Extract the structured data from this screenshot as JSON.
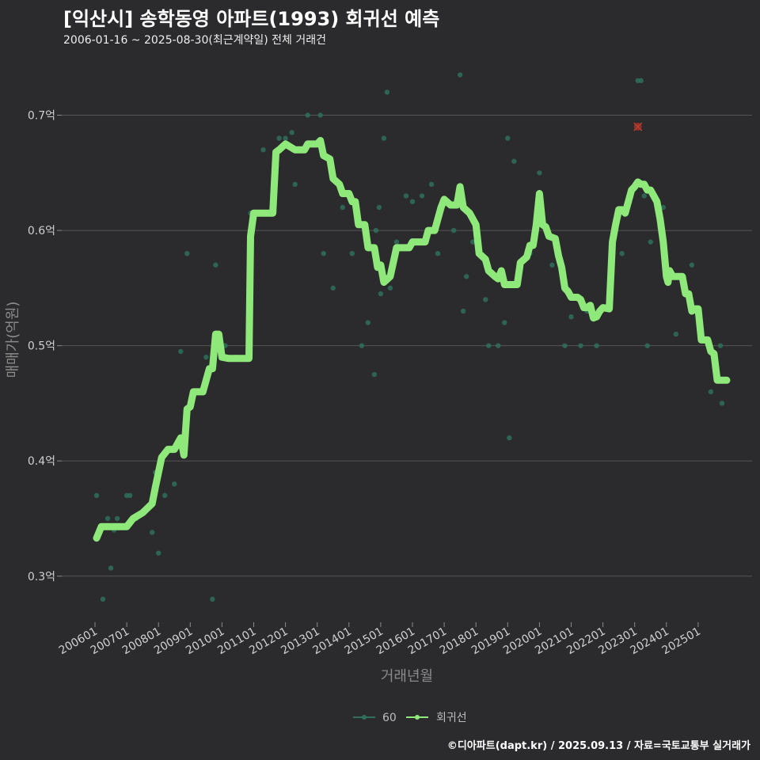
{
  "header": {
    "title": "[익산시] 송학동영 아파트(1993) 회귀선 예측",
    "subtitle": "2006-01-16 ~ 2025-08-30(최근계약일) 전체 거래건"
  },
  "footer": {
    "credit": "©디아파트(dapt.kr) / 2025.09.13 / 자료=국토교통부 실거래가"
  },
  "colors": {
    "background": "#2b2b2d",
    "points": "#2f6f5c",
    "regression": "#8ee87a",
    "outlier": "#c0392b",
    "grid": "#555555"
  },
  "chart_data": {
    "type": "scatter",
    "title": "[익산시] 송학동영 아파트(1993) 회귀선 예측",
    "xlabel": "거래년월",
    "ylabel": "매매가(억원)",
    "xlim": [
      2006.0,
      2026.0
    ],
    "ylim": [
      0.26,
      0.745
    ],
    "y_ticks": [
      {
        "value": 0.3,
        "label": "0.3억"
      },
      {
        "value": 0.4,
        "label": "0.4억"
      },
      {
        "value": 0.5,
        "label": "0.5억"
      },
      {
        "value": 0.6,
        "label": "0.6억"
      },
      {
        "value": 0.7,
        "label": "0.7억"
      }
    ],
    "x_ticks": [
      {
        "value": 2006.0,
        "label": "200601"
      },
      {
        "value": 2007.0,
        "label": "200701"
      },
      {
        "value": 2008.0,
        "label": "200801"
      },
      {
        "value": 2009.0,
        "label": "200901"
      },
      {
        "value": 2010.0,
        "label": "201001"
      },
      {
        "value": 2011.0,
        "label": "201101"
      },
      {
        "value": 2012.0,
        "label": "201201"
      },
      {
        "value": 2013.0,
        "label": "201301"
      },
      {
        "value": 2014.0,
        "label": "201401"
      },
      {
        "value": 2015.0,
        "label": "201501"
      },
      {
        "value": 2016.0,
        "label": "201601"
      },
      {
        "value": 2017.0,
        "label": "201701"
      },
      {
        "value": 2018.0,
        "label": "201801"
      },
      {
        "value": 2019.0,
        "label": "201901"
      },
      {
        "value": 2020.0,
        "label": "202001"
      },
      {
        "value": 2021.0,
        "label": "202101"
      },
      {
        "value": 2022.0,
        "label": "202201"
      },
      {
        "value": 2023.0,
        "label": "202301"
      },
      {
        "value": 2024.0,
        "label": "202401"
      },
      {
        "value": 2025.0,
        "label": "202501"
      }
    ],
    "legend": [
      {
        "name": "60",
        "kind": "points"
      },
      {
        "name": "회귀선",
        "kind": "line"
      }
    ],
    "series": [
      {
        "name": "60",
        "points": [
          [
            2006.05,
            0.37
          ],
          [
            2006.25,
            0.28
          ],
          [
            2006.4,
            0.35
          ],
          [
            2006.5,
            0.307
          ],
          [
            2006.6,
            0.34
          ],
          [
            2006.7,
            0.35
          ],
          [
            2007.0,
            0.37
          ],
          [
            2007.1,
            0.37
          ],
          [
            2007.3,
            0.35
          ],
          [
            2007.5,
            0.355
          ],
          [
            2007.8,
            0.338
          ],
          [
            2007.9,
            0.39
          ],
          [
            2008.0,
            0.32
          ],
          [
            2008.2,
            0.37
          ],
          [
            2008.5,
            0.38
          ],
          [
            2008.7,
            0.495
          ],
          [
            2008.9,
            0.58
          ],
          [
            2009.0,
            0.45
          ],
          [
            2009.1,
            0.46
          ],
          [
            2009.3,
            0.46
          ],
          [
            2009.5,
            0.49
          ],
          [
            2009.7,
            0.28
          ],
          [
            2009.8,
            0.57
          ],
          [
            2010.1,
            0.5
          ],
          [
            2010.4,
            0.49
          ],
          [
            2010.9,
            0.615
          ],
          [
            2011.3,
            0.67
          ],
          [
            2011.7,
            0.66
          ],
          [
            2011.8,
            0.68
          ],
          [
            2012.0,
            0.68
          ],
          [
            2012.2,
            0.685
          ],
          [
            2012.3,
            0.64
          ],
          [
            2012.7,
            0.7
          ],
          [
            2013.1,
            0.7
          ],
          [
            2013.2,
            0.58
          ],
          [
            2013.5,
            0.55
          ],
          [
            2013.8,
            0.62
          ],
          [
            2014.1,
            0.58
          ],
          [
            2014.4,
            0.5
          ],
          [
            2014.6,
            0.52
          ],
          [
            2014.8,
            0.475
          ],
          [
            2014.85,
            0.6
          ],
          [
            2014.95,
            0.62
          ],
          [
            2015.0,
            0.545
          ],
          [
            2015.1,
            0.68
          ],
          [
            2015.2,
            0.72
          ],
          [
            2015.3,
            0.55
          ],
          [
            2015.5,
            0.59
          ],
          [
            2015.8,
            0.63
          ],
          [
            2016.0,
            0.625
          ],
          [
            2016.3,
            0.63
          ],
          [
            2016.5,
            0.6
          ],
          [
            2016.6,
            0.64
          ],
          [
            2016.8,
            0.58
          ],
          [
            2017.3,
            0.6
          ],
          [
            2017.5,
            0.735
          ],
          [
            2017.6,
            0.53
          ],
          [
            2017.7,
            0.56
          ],
          [
            2017.9,
            0.59
          ],
          [
            2018.3,
            0.54
          ],
          [
            2018.4,
            0.5
          ],
          [
            2018.7,
            0.5
          ],
          [
            2018.9,
            0.52
          ],
          [
            2019.0,
            0.68
          ],
          [
            2019.05,
            0.42
          ],
          [
            2019.2,
            0.66
          ],
          [
            2019.4,
            0.57
          ],
          [
            2019.7,
            0.58
          ],
          [
            2019.9,
            0.6
          ],
          [
            2020.0,
            0.65
          ],
          [
            2020.2,
            0.6
          ],
          [
            2020.4,
            0.57
          ],
          [
            2020.5,
            0.59
          ],
          [
            2020.8,
            0.5
          ],
          [
            2021.0,
            0.525
          ],
          [
            2021.3,
            0.5
          ],
          [
            2021.5,
            0.53
          ],
          [
            2021.8,
            0.5
          ],
          [
            2022.6,
            0.58
          ],
          [
            2023.1,
            0.73
          ],
          [
            2023.2,
            0.73
          ],
          [
            2023.3,
            0.63
          ],
          [
            2023.4,
            0.5
          ],
          [
            2023.5,
            0.59
          ],
          [
            2023.9,
            0.62
          ],
          [
            2024.3,
            0.51
          ],
          [
            2024.8,
            0.57
          ],
          [
            2025.4,
            0.46
          ],
          [
            2025.7,
            0.5
          ],
          [
            2025.75,
            0.45
          ]
        ]
      },
      {
        "name": "회귀선",
        "points": [
          [
            2006.05,
            0.333
          ],
          [
            2006.2,
            0.343
          ],
          [
            2006.5,
            0.343
          ],
          [
            2006.8,
            0.343
          ],
          [
            2007.0,
            0.343
          ],
          [
            2007.2,
            0.35
          ],
          [
            2007.5,
            0.355
          ],
          [
            2007.8,
            0.363
          ],
          [
            2007.9,
            0.377
          ],
          [
            2008.0,
            0.39
          ],
          [
            2008.1,
            0.403
          ],
          [
            2008.3,
            0.41
          ],
          [
            2008.5,
            0.41
          ],
          [
            2008.7,
            0.42
          ],
          [
            2008.8,
            0.405
          ],
          [
            2008.9,
            0.445
          ],
          [
            2009.0,
            0.447
          ],
          [
            2009.1,
            0.46
          ],
          [
            2009.4,
            0.46
          ],
          [
            2009.6,
            0.48
          ],
          [
            2009.7,
            0.48
          ],
          [
            2009.75,
            0.495
          ],
          [
            2009.8,
            0.51
          ],
          [
            2009.9,
            0.51
          ],
          [
            2010.0,
            0.49
          ],
          [
            2010.2,
            0.489
          ],
          [
            2010.5,
            0.489
          ],
          [
            2010.85,
            0.489
          ],
          [
            2010.9,
            0.595
          ],
          [
            2011.0,
            0.615
          ],
          [
            2011.3,
            0.615
          ],
          [
            2011.6,
            0.615
          ],
          [
            2011.7,
            0.668
          ],
          [
            2011.8,
            0.67
          ],
          [
            2012.0,
            0.675
          ],
          [
            2012.3,
            0.67
          ],
          [
            2012.6,
            0.67
          ],
          [
            2012.7,
            0.675
          ],
          [
            2012.9,
            0.675
          ],
          [
            2013.0,
            0.675
          ],
          [
            2013.1,
            0.678
          ],
          [
            2013.2,
            0.665
          ],
          [
            2013.4,
            0.662
          ],
          [
            2013.5,
            0.645
          ],
          [
            2013.7,
            0.64
          ],
          [
            2013.8,
            0.632
          ],
          [
            2014.0,
            0.632
          ],
          [
            2014.1,
            0.625
          ],
          [
            2014.2,
            0.625
          ],
          [
            2014.3,
            0.605
          ],
          [
            2014.5,
            0.605
          ],
          [
            2014.6,
            0.585
          ],
          [
            2014.8,
            0.585
          ],
          [
            2014.9,
            0.568
          ],
          [
            2015.0,
            0.57
          ],
          [
            2015.1,
            0.555
          ],
          [
            2015.3,
            0.56
          ],
          [
            2015.5,
            0.585
          ],
          [
            2015.8,
            0.585
          ],
          [
            2015.9,
            0.585
          ],
          [
            2016.0,
            0.59
          ],
          [
            2016.2,
            0.59
          ],
          [
            2016.4,
            0.59
          ],
          [
            2016.5,
            0.6
          ],
          [
            2016.7,
            0.6
          ],
          [
            2016.8,
            0.61
          ],
          [
            2016.9,
            0.62
          ],
          [
            2017.0,
            0.627
          ],
          [
            2017.2,
            0.622
          ],
          [
            2017.4,
            0.622
          ],
          [
            2017.5,
            0.638
          ],
          [
            2017.6,
            0.62
          ],
          [
            2017.8,
            0.615
          ],
          [
            2017.9,
            0.61
          ],
          [
            2018.0,
            0.605
          ],
          [
            2018.1,
            0.58
          ],
          [
            2018.3,
            0.575
          ],
          [
            2018.4,
            0.565
          ],
          [
            2018.6,
            0.56
          ],
          [
            2018.7,
            0.558
          ],
          [
            2018.8,
            0.565
          ],
          [
            2018.9,
            0.553
          ],
          [
            2019.0,
            0.553
          ],
          [
            2019.3,
            0.553
          ],
          [
            2019.4,
            0.572
          ],
          [
            2019.6,
            0.577
          ],
          [
            2019.7,
            0.587
          ],
          [
            2019.8,
            0.587
          ],
          [
            2019.9,
            0.605
          ],
          [
            2020.0,
            0.632
          ],
          [
            2020.1,
            0.605
          ],
          [
            2020.2,
            0.603
          ],
          [
            2020.3,
            0.595
          ],
          [
            2020.5,
            0.593
          ],
          [
            2020.6,
            0.578
          ],
          [
            2020.7,
            0.568
          ],
          [
            2020.8,
            0.55
          ],
          [
            2020.9,
            0.547
          ],
          [
            2021.0,
            0.542
          ],
          [
            2021.2,
            0.542
          ],
          [
            2021.3,
            0.54
          ],
          [
            2021.4,
            0.533
          ],
          [
            2021.5,
            0.533
          ],
          [
            2021.6,
            0.535
          ],
          [
            2021.7,
            0.524
          ],
          [
            2021.8,
            0.525
          ],
          [
            2021.9,
            0.53
          ],
          [
            2022.0,
            0.533
          ],
          [
            2022.2,
            0.532
          ],
          [
            2022.3,
            0.59
          ],
          [
            2022.4,
            0.605
          ],
          [
            2022.5,
            0.618
          ],
          [
            2022.6,
            0.618
          ],
          [
            2022.7,
            0.615
          ],
          [
            2022.8,
            0.625
          ],
          [
            2022.9,
            0.635
          ],
          [
            2023.0,
            0.638
          ],
          [
            2023.1,
            0.642
          ],
          [
            2023.2,
            0.64
          ],
          [
            2023.3,
            0.64
          ],
          [
            2023.4,
            0.635
          ],
          [
            2023.5,
            0.635
          ],
          [
            2023.6,
            0.63
          ],
          [
            2023.7,
            0.625
          ],
          [
            2023.8,
            0.61
          ],
          [
            2023.9,
            0.59
          ],
          [
            2024.0,
            0.56
          ],
          [
            2024.05,
            0.555
          ],
          [
            2024.1,
            0.565
          ],
          [
            2024.2,
            0.56
          ],
          [
            2024.5,
            0.56
          ],
          [
            2024.6,
            0.545
          ],
          [
            2024.7,
            0.545
          ],
          [
            2024.8,
            0.53
          ],
          [
            2024.9,
            0.532
          ],
          [
            2025.0,
            0.532
          ],
          [
            2025.1,
            0.505
          ],
          [
            2025.3,
            0.505
          ],
          [
            2025.4,
            0.495
          ],
          [
            2025.5,
            0.493
          ],
          [
            2025.6,
            0.47
          ],
          [
            2025.8,
            0.47
          ],
          [
            2025.9,
            0.47
          ]
        ]
      }
    ],
    "outliers": [
      [
        2023.1,
        0.69
      ]
    ]
  }
}
